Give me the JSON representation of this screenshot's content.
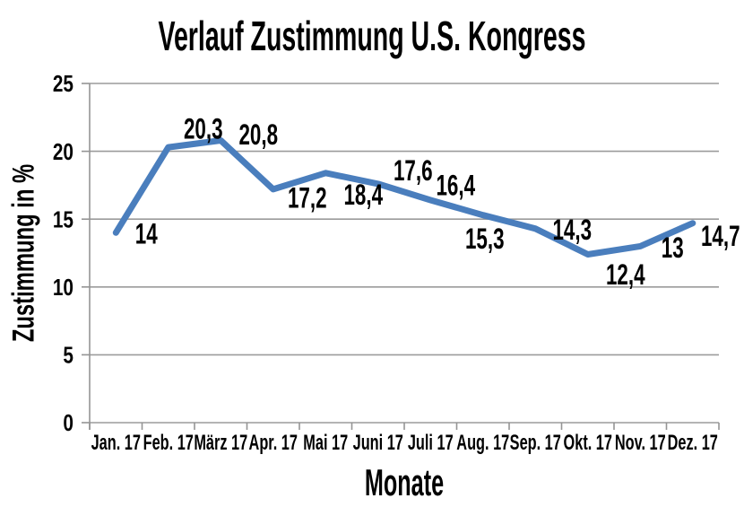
{
  "chart_data": {
    "type": "line",
    "title": "Verlauf Zustimmung U.S. Kongress",
    "xlabel": "Monate",
    "ylabel": "Zustimmung in %",
    "categories": [
      "Jan. 17",
      "Feb. 17",
      "März 17",
      "Apr. 17",
      "Mai 17",
      "Juni 17",
      "Juli 17",
      "Aug. 17",
      "Sep. 17",
      "Okt. 17",
      "Nov. 17",
      "Dez. 17"
    ],
    "values": [
      14,
      20.3,
      20.8,
      17.2,
      18.4,
      17.6,
      16.4,
      15.3,
      14.3,
      12.4,
      13,
      14.7
    ],
    "value_labels": [
      "14",
      "20,3",
      "20,8",
      "17,2",
      "18,4",
      "17,6",
      "16,4",
      "15,3",
      "14,3",
      "12,4",
      "13",
      "14,7"
    ],
    "ylim": [
      0,
      25
    ],
    "yticks": [
      0,
      5,
      10,
      15,
      20,
      25
    ],
    "ytick_labels": [
      "0",
      "5",
      "10",
      "15",
      "20",
      "25"
    ],
    "grid": "horizontal",
    "legend": "none",
    "colors": {
      "line": "#4A7EBD",
      "axis": "#949494",
      "grid": "#9B9B9B",
      "text": "#000000"
    }
  }
}
